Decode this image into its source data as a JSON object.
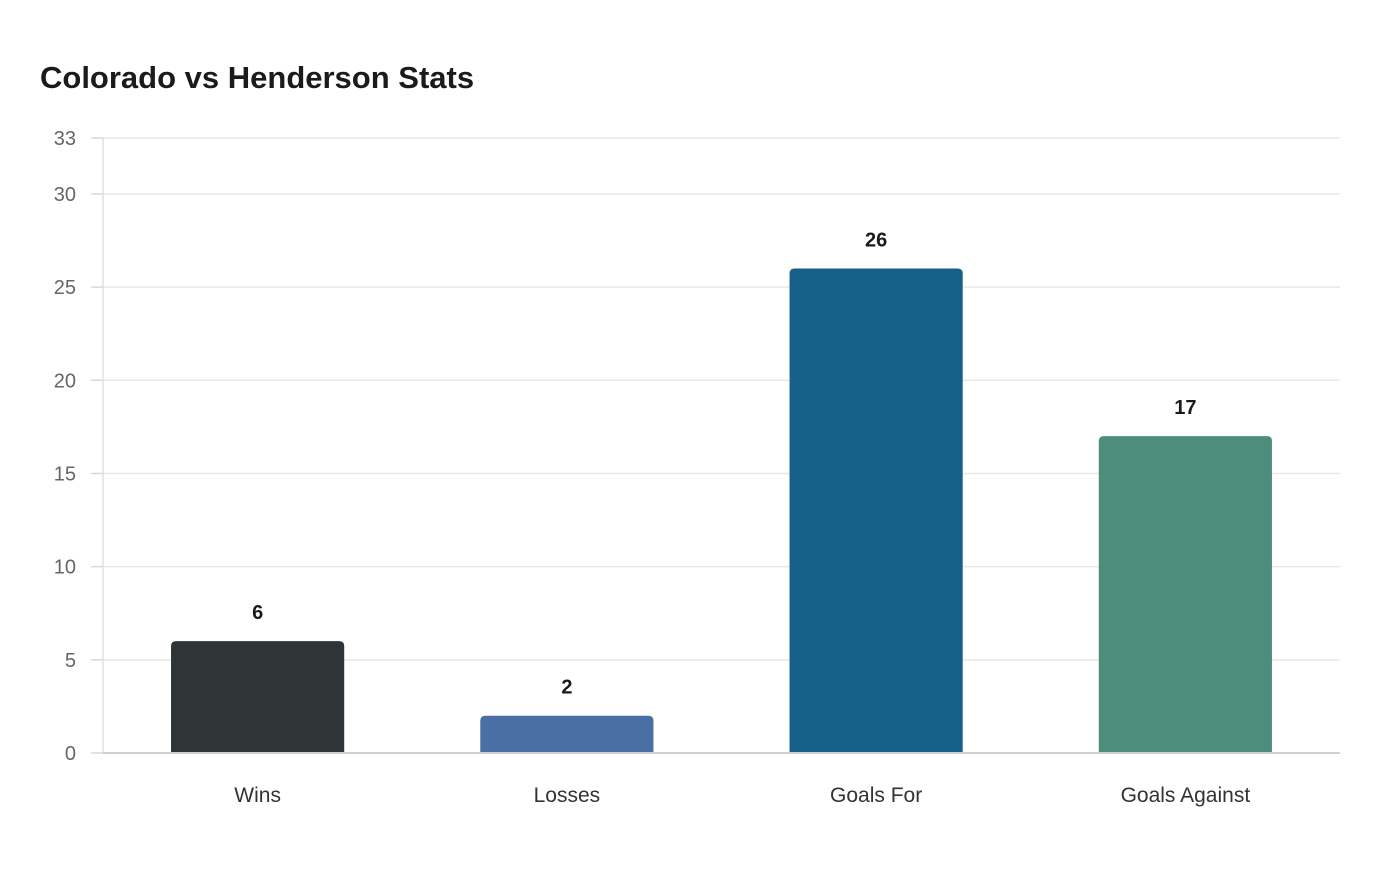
{
  "chart_data": {
    "type": "bar",
    "title": "Colorado vs Henderson Stats",
    "xlabel": "",
    "ylabel": "",
    "categories": [
      "Wins",
      "Losses",
      "Goals For",
      "Goals Against"
    ],
    "values": [
      6,
      2,
      26,
      17
    ],
    "colors": [
      "#2f3437",
      "#4a6fa5",
      "#176189",
      "#4d8d7b"
    ],
    "ylim": [
      0,
      33
    ],
    "yticks": [
      0,
      5,
      10,
      15,
      20,
      25,
      30,
      33
    ],
    "grid": true,
    "legend": "none"
  }
}
